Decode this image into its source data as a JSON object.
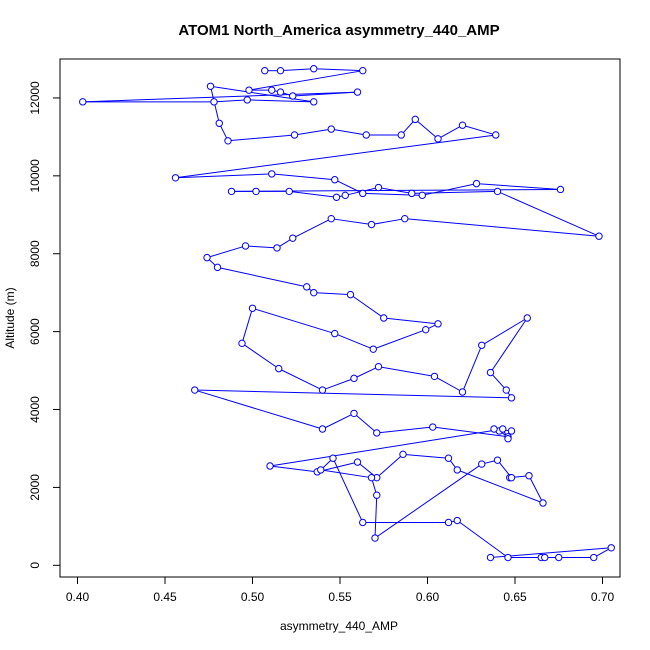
{
  "chart_data": {
    "type": "scatter",
    "title": "ATOM1 North_America asymmetry_440_AMP",
    "xlabel": "asymmetry_440_AMP",
    "ylabel": "Altitude (m)",
    "xlim": [
      0.39,
      0.71
    ],
    "ylim": [
      -300,
      13000
    ],
    "xticks": [
      0.4,
      0.45,
      0.5,
      0.55,
      0.6,
      0.65,
      0.7
    ],
    "xtick_labels": [
      "0.40",
      "0.45",
      "0.50",
      "0.55",
      "0.60",
      "0.65",
      "0.70"
    ],
    "yticks": [
      0,
      2000,
      4000,
      6000,
      8000,
      10000,
      12000
    ],
    "ytick_labels": [
      "0",
      "2000",
      "4000",
      "6000",
      "8000",
      "10000",
      "12000"
    ],
    "series": [
      {
        "name": "ATOM1 North_America",
        "color": "#0000ff",
        "marker": "open-circle",
        "connected": true,
        "x": [
          0.507,
          0.516,
          0.535,
          0.563,
          0.498,
          0.511,
          0.516,
          0.523,
          0.56,
          0.403,
          0.478,
          0.497,
          0.535,
          0.476,
          0.481,
          0.486,
          0.524,
          0.545,
          0.565,
          0.585,
          0.593,
          0.606,
          0.62,
          0.639,
          0.456,
          0.511,
          0.547,
          0.563,
          0.597,
          0.628,
          0.676,
          0.488,
          0.502,
          0.521,
          0.548,
          0.553,
          0.572,
          0.591,
          0.64,
          0.698,
          0.587,
          0.568,
          0.545,
          0.523,
          0.514,
          0.496,
          0.474,
          0.48,
          0.531,
          0.535,
          0.556,
          0.575,
          0.606,
          0.599,
          0.569,
          0.547,
          0.5,
          0.494,
          0.515,
          0.54,
          0.558,
          0.572,
          0.604,
          0.62,
          0.631,
          0.657,
          0.636,
          0.645,
          0.648,
          0.467,
          0.54,
          0.558,
          0.571,
          0.603,
          0.646,
          0.641,
          0.638,
          0.648,
          0.646,
          0.643,
          0.51,
          0.537,
          0.56,
          0.571,
          0.586,
          0.612,
          0.617,
          0.666,
          0.658,
          0.647,
          0.648,
          0.64,
          0.631,
          0.57,
          0.571,
          0.568,
          0.539,
          0.546,
          0.563,
          0.612,
          0.617,
          0.646,
          0.665,
          0.667,
          0.675,
          0.695,
          0.705,
          0.636
        ],
        "y": [
          12700,
          12700,
          12750,
          12700,
          12200,
          12200,
          12150,
          12050,
          12150,
          11900,
          11900,
          11950,
          11900,
          12300,
          11350,
          10900,
          11050,
          11200,
          11050,
          11050,
          11450,
          10950,
          11300,
          11050,
          9950,
          10050,
          9900,
          9550,
          9500,
          9800,
          9650,
          9600,
          9600,
          9600,
          9450,
          9500,
          9700,
          9550,
          9600,
          8450,
          8900,
          8750,
          8900,
          8400,
          8150,
          8200,
          7900,
          7650,
          7150,
          7000,
          6950,
          6350,
          6200,
          6050,
          5550,
          5950,
          6600,
          5700,
          5050,
          4500,
          4800,
          5100,
          4850,
          4450,
          5650,
          6350,
          4950,
          4500,
          4300,
          4500,
          3500,
          3900,
          3400,
          3550,
          3300,
          3450,
          3500,
          3450,
          3250,
          3500,
          2550,
          2400,
          2650,
          2250,
          2850,
          2750,
          2450,
          1600,
          2300,
          2250,
          2250,
          2700,
          2600,
          700,
          1800,
          2250,
          2450,
          2750,
          1100,
          1100,
          1150,
          200,
          200,
          200,
          200,
          200,
          450,
          200
        ]
      }
    ]
  }
}
